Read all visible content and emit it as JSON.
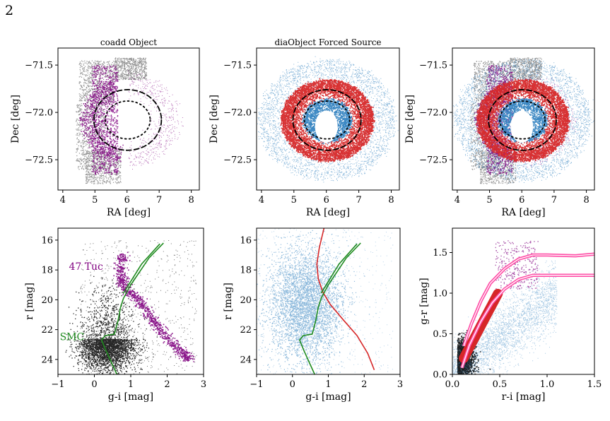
{
  "page_number": "2",
  "colors": {
    "coadd_gray": "#6e6e6e",
    "tuc_purple": "#800080",
    "smc_green": "#1f8b1f",
    "dia_blue": "#3282c0",
    "dia_red": "#d62728",
    "lpink": "#ff4da6",
    "dark": "#101010"
  },
  "chart_data": [
    {
      "id": "p1",
      "type": "scatter",
      "title": "coadd Object",
      "xlabel": "RA [deg]",
      "ylabel": "Dec [deg]",
      "xlim": [
        3.85,
        8.25
      ],
      "ylim": [
        -72.82,
        -71.32
      ],
      "y_inverted": false,
      "xticks": [
        4,
        5,
        6,
        7,
        8
      ],
      "xtick_labels": [
        "4",
        "5",
        "6",
        "7",
        "8"
      ],
      "yticks": [
        -71.5,
        -72.0,
        -72.5
      ],
      "ytick_labels": [
        "−71.5",
        "−72.0",
        "−72.5"
      ],
      "series": [
        {
          "name": "",
          "color_key": "coadd_gray"
        },
        {
          "name": "",
          "color_key": "tuc_purple"
        }
      ],
      "rings": [
        {
          "center": [
            6.02,
            -72.08
          ],
          "ra_radius": 1.05,
          "dec_radius": 0.32,
          "style": "dashed"
        },
        {
          "center": [
            6.02,
            -72.08
          ],
          "ra_radius": 0.7,
          "dec_radius": 0.2,
          "style": "dotted"
        }
      ]
    },
    {
      "id": "p2",
      "type": "scatter",
      "title": "diaObject Forced Source",
      "xlabel": "RA [deg]",
      "ylabel": "Dec [deg]",
      "xlim": [
        3.85,
        8.25
      ],
      "ylim": [
        -72.82,
        -71.32
      ],
      "y_inverted": false,
      "xticks": [
        4,
        5,
        6,
        7,
        8
      ],
      "xtick_labels": [
        "4",
        "5",
        "6",
        "7",
        "8"
      ],
      "yticks": [
        -71.5,
        -72.0,
        -72.5
      ],
      "ytick_labels": [
        "−71.5",
        "−72.0",
        "−72.5"
      ],
      "series": [
        {
          "name": "",
          "color_key": "dia_blue"
        },
        {
          "name": "",
          "color_key": "dia_red"
        }
      ],
      "rings": [
        {
          "center": [
            6.02,
            -72.08
          ],
          "ra_radius": 1.05,
          "dec_radius": 0.32,
          "style": "dashed"
        },
        {
          "center": [
            6.02,
            -72.08
          ],
          "ra_radius": 0.7,
          "dec_radius": 0.2,
          "style": "dotted"
        }
      ]
    },
    {
      "id": "p3",
      "type": "scatter",
      "title": "",
      "xlabel": "RA [deg]",
      "ylabel": "Dec [deg]",
      "xlim": [
        3.85,
        8.25
      ],
      "ylim": [
        -72.82,
        -71.32
      ],
      "y_inverted": false,
      "xticks": [
        4,
        5,
        6,
        7,
        8
      ],
      "xtick_labels": [
        "4",
        "5",
        "6",
        "7",
        "8"
      ],
      "yticks": [
        -71.5,
        -72.0,
        -72.5
      ],
      "ytick_labels": [
        "−71.5",
        "−72.0",
        "−72.5"
      ],
      "series": [
        {
          "name": "",
          "color_key": "coadd_gray"
        },
        {
          "name": "",
          "color_key": "tuc_purple"
        },
        {
          "name": "",
          "color_key": "dia_blue"
        },
        {
          "name": "",
          "color_key": "dia_red"
        }
      ],
      "rings": [
        {
          "center": [
            6.02,
            -72.08
          ],
          "ra_radius": 1.05,
          "dec_radius": 0.32,
          "style": "dashed"
        },
        {
          "center": [
            6.02,
            -72.08
          ],
          "ra_radius": 0.7,
          "dec_radius": 0.2,
          "style": "dotted"
        }
      ]
    },
    {
      "id": "p4",
      "type": "scatter",
      "title": "",
      "xlabel": "g-i [mag]",
      "ylabel": "r [mag]",
      "xlim": [
        -1,
        3
      ],
      "ylim": [
        15.2,
        25.0
      ],
      "y_inverted": true,
      "xticks": [
        -1,
        0,
        1,
        2,
        3
      ],
      "xtick_labels": [
        "−1",
        "0",
        "1",
        "2",
        "3"
      ],
      "yticks": [
        16,
        18,
        20,
        22,
        24
      ],
      "ytick_labels": [
        "16",
        "18",
        "20",
        "22",
        "24"
      ],
      "series": [
        {
          "name": "",
          "color_key": "dark"
        },
        {
          "name": "",
          "color_key": "tuc_purple"
        }
      ],
      "annotations": [
        {
          "text": "47 Tuc",
          "x": -0.7,
          "y": 18.0,
          "color_key": "tuc_purple"
        },
        {
          "text": "SMC",
          "x": -0.95,
          "y": 22.7,
          "color_key": "smc_green"
        }
      ],
      "isochrones": [
        {
          "name": "",
          "color_key": "smc_green",
          "points": [
            [
              0.62,
              25.0
            ],
            [
              0.45,
              24.1
            ],
            [
              0.3,
              23.3
            ],
            [
              0.2,
              22.7
            ],
            [
              0.3,
              22.4
            ],
            [
              0.55,
              22.3
            ],
            [
              0.65,
              21.4
            ],
            [
              0.72,
              20.5
            ],
            [
              0.8,
              19.9
            ],
            [
              1.0,
              19.0
            ],
            [
              1.5,
              17.2
            ],
            [
              1.9,
              16.2
            ]
          ]
        },
        {
          "name": "",
          "color_key": "smc_green",
          "points": [
            [
              0.8,
              19.55
            ],
            [
              1.3,
              17.6
            ],
            [
              1.8,
              16.25
            ]
          ]
        }
      ]
    },
    {
      "id": "p5",
      "type": "scatter",
      "title": "",
      "xlabel": "g-i [mag]",
      "ylabel": "r [mag]",
      "xlim": [
        -1,
        3
      ],
      "ylim": [
        15.2,
        25.0
      ],
      "y_inverted": true,
      "xticks": [
        -1,
        0,
        1,
        2,
        3
      ],
      "xtick_labels": [
        "−1",
        "0",
        "1",
        "2",
        "3"
      ],
      "yticks": [
        16,
        18,
        20,
        22,
        24
      ],
      "ytick_labels": [
        "16",
        "18",
        "20",
        "22",
        "24"
      ],
      "series": [
        {
          "name": "",
          "color_key": "dia_blue"
        }
      ],
      "isochrones": [
        {
          "name": "",
          "color_key": "dia_red",
          "points": [
            [
              0.88,
              15.2
            ],
            [
              0.75,
              16.5
            ],
            [
              0.68,
              17.6
            ],
            [
              0.72,
              18.6
            ],
            [
              0.85,
              19.5
            ],
            [
              1.05,
              20.3
            ],
            [
              1.4,
              21.3
            ],
            [
              1.8,
              22.4
            ],
            [
              2.1,
              23.6
            ],
            [
              2.28,
              24.7
            ]
          ]
        },
        {
          "name": "",
          "color_key": "smc_green",
          "points": [
            [
              0.62,
              25.0
            ],
            [
              0.45,
              24.1
            ],
            [
              0.3,
              23.3
            ],
            [
              0.2,
              22.7
            ],
            [
              0.3,
              22.4
            ],
            [
              0.55,
              22.3
            ],
            [
              0.65,
              21.4
            ],
            [
              0.72,
              20.5
            ],
            [
              0.8,
              19.9
            ],
            [
              1.0,
              19.0
            ],
            [
              1.5,
              17.2
            ],
            [
              1.9,
              16.2
            ]
          ]
        },
        {
          "name": "",
          "color_key": "smc_green",
          "points": [
            [
              0.8,
              19.55
            ],
            [
              1.3,
              17.6
            ],
            [
              1.8,
              16.25
            ]
          ]
        }
      ]
    },
    {
      "id": "p6",
      "type": "scatter",
      "title": "",
      "xlabel": "r-i [mag]",
      "ylabel": "g-r [mag]",
      "xlim": [
        0.0,
        1.5
      ],
      "ylim": [
        0.0,
        1.8
      ],
      "y_inverted": false,
      "xticks": [
        0.0,
        0.5,
        1.0,
        1.5
      ],
      "xtick_labels": [
        "0.0",
        "0.5",
        "1.0",
        "1.5"
      ],
      "yticks": [
        0.0,
        0.5,
        1.0,
        1.5
      ],
      "ytick_labels": [
        "0.0",
        "0.5",
        "1.0",
        "1.5"
      ],
      "series": [
        {
          "name": "",
          "color_key": "dark"
        },
        {
          "name": "",
          "color_key": "dia_blue"
        },
        {
          "name": "",
          "color_key": "tuc_purple"
        },
        {
          "name": "",
          "color_key": "dia_red"
        }
      ],
      "locus_upper": [
        [
          0.12,
          0.35
        ],
        [
          0.2,
          0.62
        ],
        [
          0.3,
          0.9
        ],
        [
          0.4,
          1.12
        ],
        [
          0.55,
          1.3
        ],
        [
          0.7,
          1.42
        ],
        [
          0.85,
          1.47
        ],
        [
          1.0,
          1.47
        ],
        [
          1.3,
          1.46
        ],
        [
          1.5,
          1.48
        ]
      ],
      "locus_lower": [
        [
          0.1,
          0.08
        ],
        [
          0.18,
          0.36
        ],
        [
          0.3,
          0.65
        ],
        [
          0.42,
          0.88
        ],
        [
          0.55,
          1.05
        ],
        [
          0.7,
          1.17
        ],
        [
          0.85,
          1.22
        ],
        [
          1.0,
          1.22
        ],
        [
          1.3,
          1.22
        ],
        [
          1.5,
          1.22
        ]
      ]
    }
  ]
}
